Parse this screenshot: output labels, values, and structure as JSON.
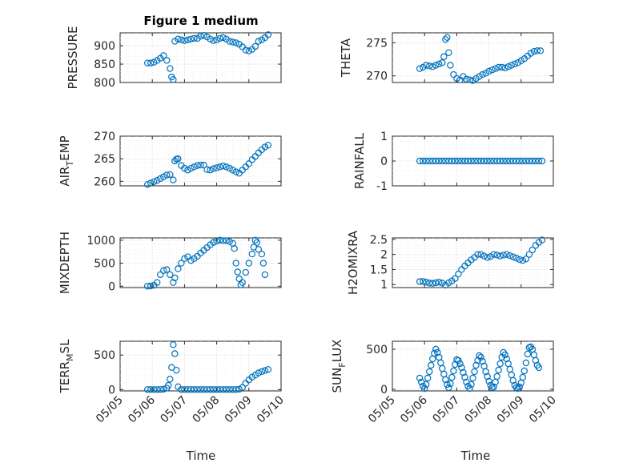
{
  "chart_data": {
    "type": "scatter",
    "title": "Figure 1 medium",
    "xlabel": "Time",
    "marker_color": "#0072BD",
    "grid": "on",
    "x_ticks": [
      "05/05",
      "05/06",
      "05/07",
      "05/08",
      "05/09",
      "05/10"
    ],
    "x_range": [
      0,
      5
    ],
    "x_unit": "days after 05/05",
    "panels": [
      {
        "id": "pressure",
        "ylabel": "PRESSURE",
        "sub": "",
        "ylim": [
          800,
          935
        ],
        "yticks": [
          800,
          850,
          900
        ],
        "x": [
          0.85,
          0.95,
          1.05,
          1.15,
          1.25,
          1.35,
          1.45,
          1.55,
          1.6,
          1.65,
          1.7,
          1.8,
          1.9,
          2.0,
          2.1,
          2.2,
          2.3,
          2.4,
          2.5,
          2.6,
          2.7,
          2.8,
          2.9,
          3.0,
          3.1,
          3.2,
          3.3,
          3.4,
          3.5,
          3.6,
          3.7,
          3.8,
          3.9,
          4.0,
          4.1,
          4.2,
          4.3,
          4.4,
          4.5,
          4.6
        ],
        "y": [
          853,
          853,
          855,
          860,
          866,
          873,
          860,
          838,
          815,
          808,
          912,
          918,
          916,
          914,
          916,
          918,
          920,
          920,
          926,
          928,
          924,
          918,
          914,
          916,
          920,
          922,
          918,
          912,
          910,
          908,
          904,
          897,
          888,
          886,
          890,
          898,
          912,
          916,
          922,
          930
        ]
      },
      {
        "id": "theta",
        "ylabel": "THETA",
        "sub": "",
        "ylim": [
          269,
          276.5
        ],
        "yticks": [
          270,
          275
        ],
        "x": [
          0.85,
          0.95,
          1.05,
          1.15,
          1.25,
          1.35,
          1.45,
          1.55,
          1.6,
          1.65,
          1.7,
          1.75,
          1.8,
          1.9,
          2.0,
          2.1,
          2.2,
          2.3,
          2.4,
          2.5,
          2.6,
          2.7,
          2.8,
          2.9,
          3.0,
          3.1,
          3.2,
          3.3,
          3.4,
          3.5,
          3.6,
          3.7,
          3.8,
          3.9,
          4.0,
          4.1,
          4.2,
          4.3,
          4.4,
          4.5,
          4.6
        ],
        "y": [
          271.1,
          271.3,
          271.6,
          271.5,
          271.4,
          271.6,
          271.8,
          272.0,
          272.9,
          275.5,
          275.8,
          273.5,
          271.6,
          270.2,
          269.6,
          269.4,
          269.9,
          269.5,
          269.4,
          269.3,
          269.6,
          269.9,
          270.2,
          270.4,
          270.7,
          270.9,
          271.1,
          271.3,
          271.3,
          271.2,
          271.4,
          271.6,
          271.8,
          272.0,
          272.3,
          272.6,
          273.0,
          273.4,
          273.7,
          273.8,
          273.8
        ]
      },
      {
        "id": "air-temp",
        "ylabel": "AIR",
        "sub": "TEMP",
        "ylim": [
          259,
          270
        ],
        "yticks": [
          260,
          265,
          270
        ],
        "x": [
          0.85,
          0.95,
          1.05,
          1.15,
          1.25,
          1.35,
          1.45,
          1.55,
          1.65,
          1.7,
          1.75,
          1.8,
          1.9,
          2.0,
          2.1,
          2.2,
          2.3,
          2.4,
          2.5,
          2.6,
          2.7,
          2.8,
          2.9,
          3.0,
          3.1,
          3.2,
          3.3,
          3.4,
          3.5,
          3.6,
          3.7,
          3.8,
          3.9,
          4.0,
          4.1,
          4.2,
          4.3,
          4.4,
          4.5,
          4.6
        ],
        "y": [
          259.3,
          259.6,
          259.9,
          260.2,
          260.6,
          261.0,
          261.4,
          261.5,
          260.3,
          264.5,
          264.9,
          265.0,
          263.5,
          262.9,
          262.5,
          262.9,
          263.2,
          263.5,
          263.6,
          263.6,
          262.6,
          262.5,
          262.8,
          263.0,
          263.2,
          263.4,
          263.2,
          262.9,
          262.5,
          262.1,
          261.8,
          262.5,
          263.2,
          263.9,
          264.8,
          265.5,
          266.3,
          267.0,
          267.6,
          268.0
        ]
      },
      {
        "id": "rainfall",
        "ylabel": "RAINFALL",
        "sub": "",
        "ylim": [
          -1,
          1
        ],
        "yticks": [
          -1,
          0,
          1
        ],
        "x": [
          0.85,
          0.95,
          1.05,
          1.15,
          1.25,
          1.35,
          1.45,
          1.55,
          1.65,
          1.75,
          1.85,
          1.95,
          2.05,
          2.15,
          2.25,
          2.35,
          2.45,
          2.55,
          2.65,
          2.75,
          2.85,
          2.95,
          3.05,
          3.15,
          3.25,
          3.35,
          3.45,
          3.55,
          3.65,
          3.75,
          3.85,
          3.95,
          4.05,
          4.15,
          4.25,
          4.35,
          4.45,
          4.55,
          4.65
        ],
        "y": [
          0,
          0,
          0,
          0,
          0,
          0,
          0,
          0,
          0,
          0,
          0,
          0,
          0,
          0,
          0,
          0,
          0,
          0,
          0,
          0,
          0,
          0,
          0,
          0,
          0,
          0,
          0,
          0,
          0,
          0,
          0,
          0,
          0,
          0,
          0,
          0,
          0,
          0,
          0
        ]
      },
      {
        "id": "mixdepth",
        "ylabel": "MIXDEPTH",
        "sub": "",
        "ylim": [
          -30,
          1050
        ],
        "yticks": [
          0,
          500,
          1000
        ],
        "x": [
          0.85,
          0.95,
          1.05,
          1.15,
          1.25,
          1.35,
          1.45,
          1.55,
          1.65,
          1.7,
          1.8,
          1.9,
          2.0,
          2.1,
          2.2,
          2.3,
          2.4,
          2.5,
          2.6,
          2.7,
          2.8,
          2.9,
          3.0,
          3.1,
          3.2,
          3.3,
          3.4,
          3.5,
          3.55,
          3.6,
          3.65,
          3.7,
          3.75,
          3.8,
          3.9,
          4.0,
          4.1,
          4.15,
          4.2,
          4.25,
          4.3,
          4.4,
          4.45,
          4.5
        ],
        "y": [
          0,
          5,
          20,
          80,
          250,
          340,
          360,
          250,
          80,
          180,
          380,
          500,
          600,
          640,
          560,
          600,
          650,
          720,
          780,
          840,
          900,
          950,
          980,
          1000,
          990,
          990,
          970,
          930,
          820,
          500,
          310,
          160,
          30,
          80,
          300,
          500,
          700,
          850,
          1000,
          950,
          800,
          700,
          500,
          250
        ]
      },
      {
        "id": "h2omixra",
        "ylabel": "H2OMIXRA",
        "sub": "",
        "ylim": [
          0.9,
          2.55
        ],
        "yticks": [
          1,
          1.5,
          2,
          2.5
        ],
        "x": [
          0.85,
          0.95,
          1.05,
          1.15,
          1.25,
          1.35,
          1.45,
          1.55,
          1.65,
          1.75,
          1.85,
          1.95,
          2.05,
          2.15,
          2.25,
          2.35,
          2.45,
          2.55,
          2.65,
          2.75,
          2.85,
          2.95,
          3.05,
          3.15,
          3.25,
          3.35,
          3.45,
          3.55,
          3.65,
          3.75,
          3.85,
          3.95,
          4.05,
          4.15,
          4.25,
          4.35,
          4.45,
          4.55,
          4.65
        ],
        "y": [
          1.1,
          1.1,
          1.08,
          1.05,
          1.04,
          1.06,
          1.08,
          1.05,
          0.98,
          1.06,
          1.12,
          1.2,
          1.35,
          1.5,
          1.62,
          1.72,
          1.82,
          1.9,
          2.0,
          2.0,
          1.95,
          1.9,
          1.93,
          2.0,
          1.98,
          1.95,
          1.98,
          2.0,
          1.96,
          1.92,
          1.88,
          1.83,
          1.8,
          1.85,
          2.0,
          2.15,
          2.3,
          2.4,
          2.48
        ]
      },
      {
        "id": "terr-msl",
        "ylabel": "TERR",
        "sub": "M",
        "ylabel_suffix": "SL",
        "ylim": [
          -20,
          700
        ],
        "yticks": [
          0,
          500
        ],
        "x": [
          0.85,
          0.95,
          1.05,
          1.15,
          1.25,
          1.35,
          1.45,
          1.5,
          1.55,
          1.6,
          1.65,
          1.7,
          1.75,
          1.8,
          1.9,
          2.0,
          2.1,
          2.2,
          2.3,
          2.4,
          2.5,
          2.6,
          2.7,
          2.8,
          2.9,
          3.0,
          3.1,
          3.2,
          3.3,
          3.4,
          3.5,
          3.6,
          3.7,
          3.8,
          3.9,
          4.0,
          4.1,
          4.2,
          4.3,
          4.4,
          4.5,
          4.6
        ],
        "y": [
          0,
          0,
          0,
          0,
          0,
          5,
          20,
          60,
          150,
          320,
          650,
          520,
          280,
          40,
          0,
          0,
          0,
          0,
          0,
          0,
          0,
          0,
          0,
          0,
          0,
          0,
          0,
          0,
          0,
          0,
          0,
          0,
          5,
          30,
          90,
          140,
          180,
          210,
          240,
          260,
          275,
          290
        ]
      },
      {
        "id": "sun-flux",
        "ylabel": "SUN",
        "sub": "F",
        "ylabel_suffix": "LUX",
        "ylim": [
          -20,
          600
        ],
        "yticks": [
          0,
          500
        ],
        "x": [
          0.85,
          0.9,
          0.95,
          1.0,
          1.05,
          1.1,
          1.15,
          1.2,
          1.25,
          1.3,
          1.35,
          1.4,
          1.45,
          1.5,
          1.55,
          1.6,
          1.65,
          1.7,
          1.75,
          1.8,
          1.85,
          1.9,
          1.95,
          2.0,
          2.05,
          2.1,
          2.15,
          2.2,
          2.25,
          2.3,
          2.35,
          2.4,
          2.45,
          2.5,
          2.55,
          2.6,
          2.65,
          2.7,
          2.75,
          2.8,
          2.85,
          2.9,
          2.95,
          3.0,
          3.05,
          3.1,
          3.15,
          3.2,
          3.25,
          3.3,
          3.35,
          3.4,
          3.45,
          3.5,
          3.55,
          3.6,
          3.65,
          3.7,
          3.75,
          3.8,
          3.85,
          3.9,
          3.95,
          4.0,
          4.05,
          4.1,
          4.15,
          4.2,
          4.25,
          4.3,
          4.35,
          4.4,
          4.45,
          4.5,
          4.55
        ],
        "y": [
          140,
          90,
          40,
          10,
          60,
          140,
          220,
          300,
          380,
          450,
          500,
          460,
          400,
          330,
          260,
          190,
          120,
          60,
          20,
          70,
          150,
          230,
          310,
          370,
          360,
          320,
          270,
          210,
          150,
          90,
          40,
          10,
          60,
          140,
          220,
          300,
          360,
          420,
          400,
          350,
          290,
          220,
          160,
          100,
          50,
          20,
          30,
          90,
          160,
          240,
          320,
          400,
          460,
          430,
          380,
          320,
          250,
          180,
          110,
          50,
          20,
          10,
          30,
          80,
          150,
          230,
          330,
          440,
          520,
          530,
          500,
          430,
          360,
          300,
          270
        ]
      }
    ]
  }
}
